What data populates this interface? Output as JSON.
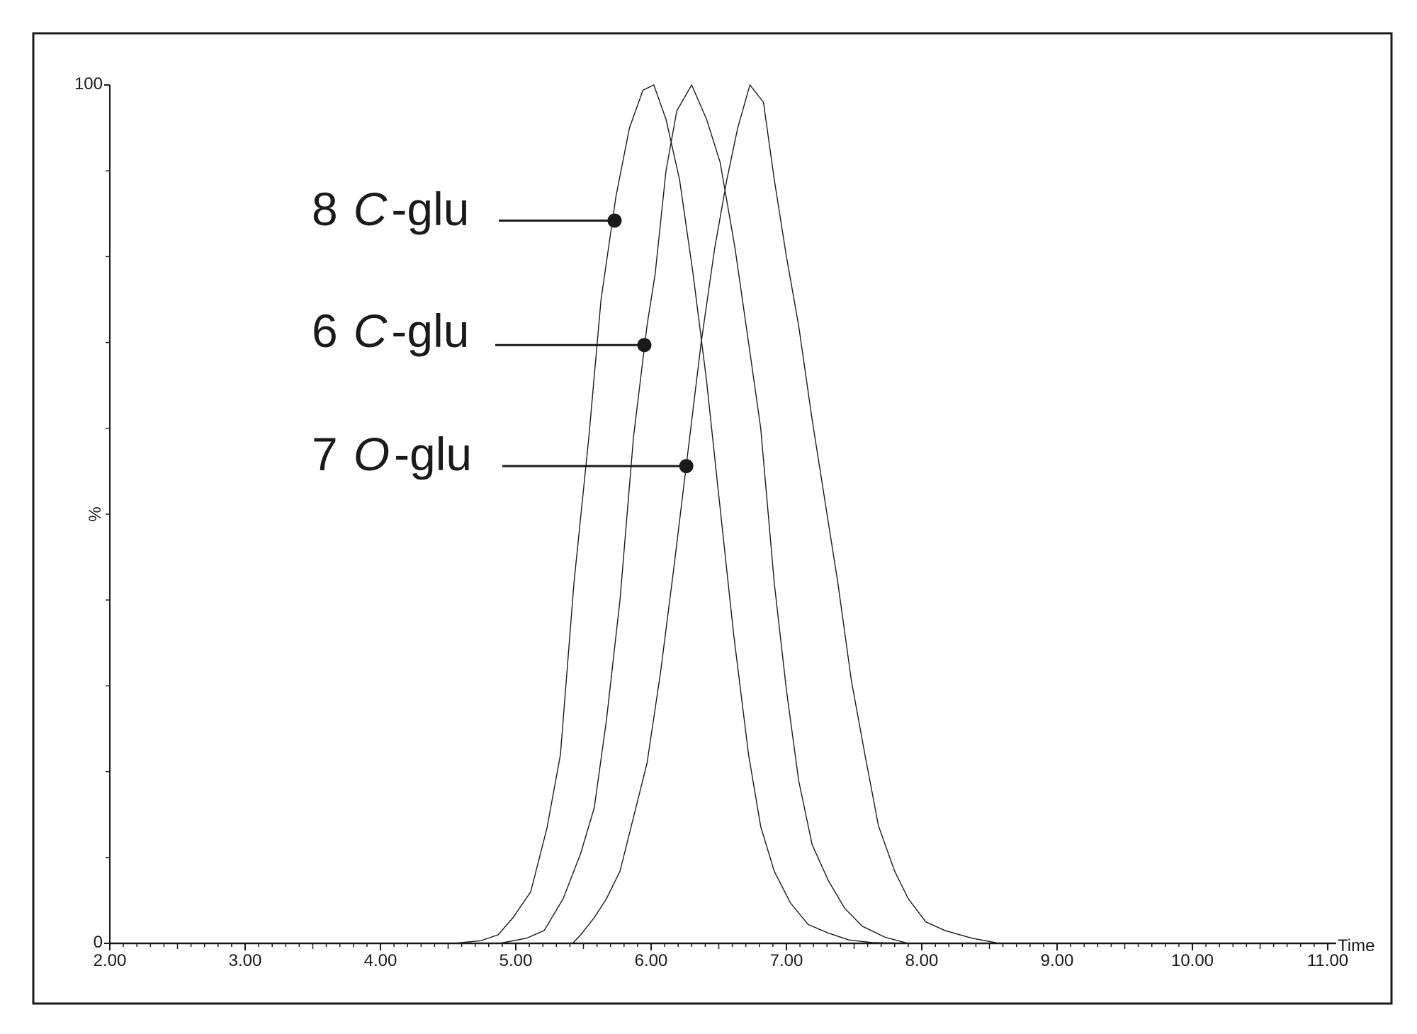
{
  "chart_data": {
    "type": "line",
    "xlabel": "Time",
    "ylabel": "%",
    "xlim": [
      2,
      11
    ],
    "ylim": [
      0,
      100
    ],
    "xticks": [
      {
        "value": 2,
        "label": "2.00"
      },
      {
        "value": 3,
        "label": "3.00"
      },
      {
        "value": 4,
        "label": "4.00"
      },
      {
        "value": 5,
        "label": "5.00"
      },
      {
        "value": 6,
        "label": "6.00"
      },
      {
        "value": 7,
        "label": "7.00"
      },
      {
        "value": 8,
        "label": "8.00"
      },
      {
        "value": 9,
        "label": "9.00"
      },
      {
        "value": 10,
        "label": "10.00"
      },
      {
        "value": 11,
        "label": "11.00"
      }
    ],
    "yticks": [
      0,
      100
    ],
    "x_minor_divisions": 10,
    "y_minor_divisions": 10,
    "color": "#1a1a1a",
    "series": [
      {
        "x": [
          2,
          4.54,
          4.74,
          4.87,
          4.98,
          5.11,
          5.23,
          5.33,
          5.43,
          5.54,
          5.63,
          5.74,
          5.84,
          5.94,
          6.02,
          6.11,
          6.21,
          6.31,
          6.41,
          6.51,
          6.61,
          6.72,
          6.81,
          6.91,
          7.03,
          7.16,
          7.31,
          7.46,
          7.63,
          7.9,
          11
        ],
        "values": [
          0,
          0,
          0.3,
          1,
          3,
          6,
          13.4,
          22,
          42,
          59,
          75,
          87,
          95,
          99.4,
          100,
          96,
          89,
          78,
          65.5,
          50.7,
          36,
          22,
          13.6,
          8.4,
          4.7,
          2.2,
          1.2,
          0.4,
          0.1,
          0,
          0
        ]
      },
      {
        "x": [
          2,
          4.88,
          5.08,
          5.21,
          5.35,
          5.48,
          5.58,
          5.67,
          5.77,
          5.87,
          5.97,
          6.03,
          6.11,
          6.19,
          6.3,
          6.41,
          6.51,
          6.62,
          6.72,
          6.81,
          6.91,
          7.0,
          7.09,
          7.19,
          7.31,
          7.43,
          7.56,
          7.73,
          7.9,
          11
        ],
        "values": [
          0,
          0,
          0.6,
          1.5,
          5.2,
          10.5,
          15.8,
          26,
          40,
          59,
          72,
          78,
          90,
          97,
          100,
          96,
          91,
          81,
          70,
          60,
          42,
          29.5,
          19,
          11.5,
          7.3,
          4.1,
          2,
          0.7,
          0,
          0
        ]
      },
      {
        "x": [
          2,
          5.42,
          5.48,
          5.58,
          5.67,
          5.77,
          5.87,
          5.97,
          6.07,
          6.17,
          6.27,
          6.37,
          6.47,
          6.56,
          6.64,
          6.73,
          6.83,
          6.91,
          7.0,
          7.09,
          7.19,
          7.28,
          7.38,
          7.48,
          7.58,
          7.68,
          7.8,
          7.9,
          8.03,
          8.17,
          8.37,
          8.54,
          8.57,
          11
        ],
        "values": [
          0,
          0,
          1,
          3,
          5.2,
          8.4,
          14.7,
          21,
          31.6,
          44,
          57,
          70,
          81,
          89,
          95,
          100,
          98,
          89,
          80,
          72,
          61,
          52,
          42,
          30.6,
          22,
          13.7,
          8.4,
          5.2,
          2.5,
          1.5,
          0.6,
          0.1,
          0,
          0
        ]
      }
    ],
    "annotations": [
      {
        "number": "8",
        "letter": "C",
        "suffix": "-glu",
        "x": 5.73,
        "y": 84.2
      },
      {
        "number": "6",
        "letter": "C",
        "suffix": "-glu",
        "x": 5.95,
        "y": 69.7
      },
      {
        "number": "7",
        "letter": "O",
        "suffix": "-glu",
        "x": 6.26,
        "y": 55.6
      }
    ]
  }
}
